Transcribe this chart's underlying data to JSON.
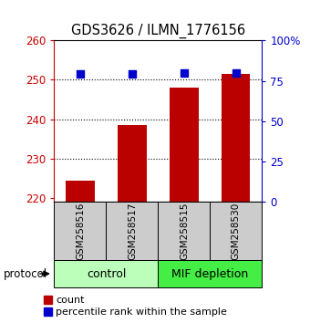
{
  "title": "GDS3626 / ILMN_1776156",
  "samples": [
    "GSM258516",
    "GSM258517",
    "GSM258515",
    "GSM258530"
  ],
  "counts": [
    224.5,
    238.5,
    248.0,
    251.5
  ],
  "percentile_ranks": [
    79,
    79,
    80,
    80
  ],
  "ylim_left": [
    219,
    260
  ],
  "ylim_right": [
    0,
    100
  ],
  "yticks_left": [
    220,
    230,
    240,
    250,
    260
  ],
  "yticks_right": [
    0,
    25,
    50,
    75,
    100
  ],
  "ytick_labels_right": [
    "0",
    "25",
    "50",
    "75",
    "100%"
  ],
  "bar_color": "#bb0000",
  "dot_color": "#0000cc",
  "groups": [
    {
      "label": "control",
      "indices": [
        0,
        1
      ],
      "color": "#bbffbb"
    },
    {
      "label": "MIF depletion",
      "indices": [
        2,
        3
      ],
      "color": "#44ee44"
    }
  ],
  "protocol_label": "protocol",
  "legend_count_label": "count",
  "legend_percentile_label": "percentile rank within the sample",
  "bar_width": 0.55,
  "dot_size": 35,
  "axis_label_color_left": "#cc0000",
  "axis_label_color_right": "#0000cc",
  "background_plot": "#ffffff",
  "sample_box_color": "#cccccc",
  "fig_width": 3.4,
  "fig_height": 3.54,
  "dpi": 100
}
